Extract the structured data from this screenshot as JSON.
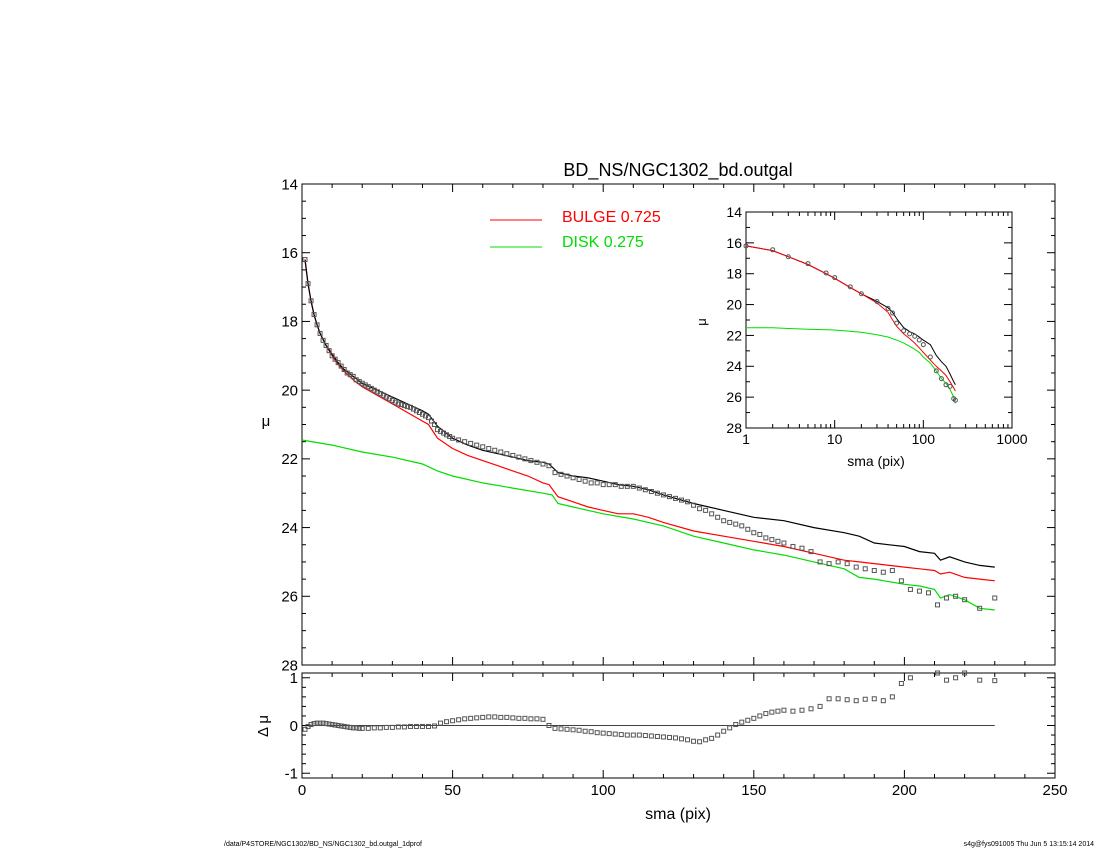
{
  "chart_data": [
    {
      "type": "line",
      "title": "BD_NS/NGC1302_bd.outgal",
      "xlabel": "",
      "ylabel": "μ",
      "xlim": [
        0,
        250
      ],
      "ylim": [
        28,
        14
      ],
      "yticks": [
        "14",
        "16",
        "18",
        "20",
        "22",
        "24",
        "26",
        "28"
      ],
      "legend_placement": "top-center",
      "legend": [
        {
          "label": "BULGE  0.725",
          "color": "#ff0000"
        },
        {
          "label": "DISK  0.275",
          "color": "#00dd00"
        }
      ],
      "series": [
        {
          "name": "BULGE  0.725",
          "color": "#ff0000",
          "x": [
            1,
            2,
            3,
            4,
            5,
            6,
            8,
            10,
            12,
            14,
            17,
            20,
            25,
            30,
            35,
            40,
            42,
            45,
            50,
            55,
            60,
            65,
            70,
            75,
            80,
            82,
            85,
            90,
            95,
            100,
            105,
            110,
            115,
            120,
            130,
            140,
            150,
            160,
            170,
            180,
            185,
            190,
            195,
            200,
            205,
            210,
            212,
            215,
            220,
            225,
            230
          ],
          "y": [
            16.2,
            16.9,
            17.4,
            17.8,
            18.1,
            18.35,
            18.7,
            19.0,
            19.25,
            19.45,
            19.7,
            19.9,
            20.15,
            20.4,
            20.65,
            20.9,
            21.0,
            21.4,
            21.7,
            21.9,
            22.05,
            22.2,
            22.35,
            22.5,
            22.7,
            22.75,
            23.1,
            23.25,
            23.4,
            23.5,
            23.6,
            23.6,
            23.7,
            23.85,
            24.1,
            24.25,
            24.4,
            24.55,
            24.75,
            24.95,
            25.0,
            25.05,
            25.1,
            25.15,
            25.2,
            25.25,
            25.35,
            25.3,
            25.45,
            25.5,
            25.55
          ]
        },
        {
          "name": "DISK  0.275",
          "color": "#00dd00",
          "x": [
            0,
            10,
            20,
            30,
            40,
            45,
            50,
            60,
            70,
            80,
            83,
            85,
            90,
            100,
            110,
            120,
            130,
            140,
            150,
            160,
            170,
            180,
            185,
            190,
            200,
            205,
            210,
            212,
            215,
            220,
            225,
            230
          ],
          "y": [
            21.45,
            21.6,
            21.8,
            21.95,
            22.15,
            22.35,
            22.5,
            22.7,
            22.85,
            23.0,
            23.05,
            23.3,
            23.4,
            23.6,
            23.75,
            23.95,
            24.25,
            24.45,
            24.65,
            24.8,
            25.0,
            25.2,
            25.45,
            25.5,
            25.65,
            25.7,
            25.8,
            26.05,
            25.95,
            26.1,
            26.35,
            26.4
          ]
        },
        {
          "name": "",
          "color": "#000000",
          "x": [
            1,
            2,
            3,
            4,
            5,
            6,
            8,
            10,
            12,
            14,
            17,
            20,
            25,
            30,
            35,
            40,
            42,
            45,
            50,
            55,
            60,
            65,
            70,
            75,
            80,
            82,
            85,
            90,
            95,
            100,
            105,
            110,
            115,
            120,
            130,
            140,
            150,
            160,
            170,
            180,
            185,
            190,
            195,
            200,
            205,
            210,
            212,
            215,
            220,
            225,
            230
          ],
          "y": [
            16.2,
            16.9,
            17.4,
            17.8,
            18.1,
            18.35,
            18.7,
            18.95,
            19.2,
            19.4,
            19.6,
            19.8,
            20.0,
            20.2,
            20.4,
            20.6,
            20.7,
            21.05,
            21.4,
            21.6,
            21.75,
            21.85,
            21.95,
            22.05,
            22.1,
            22.15,
            22.4,
            22.5,
            22.55,
            22.65,
            22.75,
            22.8,
            22.9,
            23.05,
            23.3,
            23.5,
            23.7,
            23.8,
            24.0,
            24.15,
            24.25,
            24.45,
            24.5,
            24.55,
            24.7,
            24.75,
            24.95,
            24.85,
            25.0,
            25.1,
            25.15
          ]
        },
        {
          "name": "",
          "color": "#555555",
          "marker": "square",
          "x": [
            1,
            2,
            3,
            4,
            5,
            6,
            7,
            8,
            9,
            10,
            11,
            12,
            13,
            14,
            15,
            16,
            17,
            18,
            19,
            20,
            21,
            22,
            23,
            24,
            25,
            26,
            27,
            28,
            29,
            30,
            31,
            32,
            33,
            34,
            35,
            36,
            37,
            38,
            39,
            40,
            41,
            42,
            43,
            44,
            45,
            46,
            47,
            48,
            49,
            50,
            52,
            54,
            56,
            58,
            60,
            62,
            64,
            66,
            68,
            70,
            72,
            74,
            76,
            78,
            80,
            82,
            84,
            86,
            88,
            90,
            92,
            94,
            96,
            98,
            100,
            102,
            104,
            106,
            108,
            110,
            112,
            114,
            116,
            118,
            120,
            122,
            124,
            126,
            128,
            130,
            132,
            134,
            136,
            138,
            140,
            142,
            144,
            146,
            148,
            150,
            152,
            154,
            156,
            158,
            160,
            163,
            166,
            169,
            172,
            175,
            178,
            181,
            184,
            187,
            190,
            193,
            196,
            199,
            202,
            205,
            208,
            211,
            214,
            217,
            220,
            225,
            230
          ],
          "y": [
            16.2,
            16.9,
            17.4,
            17.8,
            18.1,
            18.35,
            18.55,
            18.7,
            18.85,
            19.0,
            19.1,
            19.2,
            19.3,
            19.4,
            19.5,
            19.55,
            19.6,
            19.7,
            19.75,
            19.8,
            19.85,
            19.9,
            19.95,
            20.0,
            20.05,
            20.1,
            20.15,
            20.2,
            20.25,
            20.3,
            20.35,
            20.4,
            20.42,
            20.45,
            20.48,
            20.5,
            20.55,
            20.6,
            20.65,
            20.7,
            20.75,
            20.8,
            20.9,
            21.0,
            21.15,
            21.2,
            21.25,
            21.3,
            21.35,
            21.4,
            21.45,
            21.5,
            21.55,
            21.6,
            21.65,
            21.7,
            21.75,
            21.8,
            21.85,
            21.9,
            21.95,
            22.0,
            22.05,
            22.1,
            22.15,
            22.2,
            22.4,
            22.45,
            22.5,
            22.55,
            22.6,
            22.65,
            22.7,
            22.7,
            22.75,
            22.75,
            22.75,
            22.8,
            22.8,
            22.8,
            22.85,
            22.9,
            22.95,
            23.0,
            23.05,
            23.1,
            23.15,
            23.2,
            23.25,
            23.35,
            23.45,
            23.5,
            23.6,
            23.7,
            23.8,
            23.85,
            23.9,
            23.95,
            24.05,
            24.15,
            24.2,
            24.3,
            24.35,
            24.4,
            24.45,
            24.55,
            24.6,
            24.7,
            25.0,
            25.05,
            25.0,
            25.05,
            25.15,
            25.2,
            25.25,
            25.3,
            25.25,
            25.55,
            25.8,
            25.85,
            25.9,
            26.25,
            26.05,
            26.0,
            26.1,
            26.35,
            26.05
          ]
        }
      ]
    },
    {
      "type": "line",
      "title": "",
      "xlabel": "sma (pix)",
      "ylabel": "μ",
      "xscale": "log",
      "xlim": [
        1,
        1000
      ],
      "ylim": [
        28,
        14
      ],
      "xticks": [
        "1",
        "10",
        "100",
        "1000"
      ],
      "yticks": [
        "14",
        "16",
        "18",
        "20",
        "22",
        "24",
        "26",
        "28"
      ],
      "series": [
        {
          "name": "",
          "color": "#000000",
          "x": [
            1,
            2,
            3,
            5,
            8,
            10,
            15,
            20,
            30,
            40,
            45,
            50,
            60,
            70,
            80,
            90,
            100,
            120,
            140,
            160,
            180,
            200,
            220,
            230
          ],
          "y": [
            16.2,
            16.5,
            16.9,
            17.4,
            18.0,
            18.3,
            18.9,
            19.3,
            19.8,
            20.2,
            20.5,
            20.9,
            21.5,
            21.75,
            21.9,
            22.1,
            22.3,
            22.6,
            23.3,
            23.7,
            24.0,
            24.5,
            25.0,
            25.2
          ]
        },
        {
          "name": "",
          "color": "#ff0000",
          "x": [
            1,
            2,
            3,
            5,
            8,
            10,
            15,
            20,
            30,
            40,
            45,
            50,
            60,
            70,
            80,
            90,
            100,
            120,
            140,
            160,
            180,
            200,
            220,
            230
          ],
          "y": [
            16.2,
            16.5,
            16.9,
            17.4,
            18.0,
            18.3,
            18.9,
            19.3,
            19.9,
            20.5,
            21.0,
            21.4,
            21.9,
            22.2,
            22.5,
            22.8,
            23.1,
            23.6,
            24.0,
            24.3,
            24.6,
            25.0,
            25.4,
            25.6
          ]
        },
        {
          "name": "",
          "color": "#00dd00",
          "x": [
            1,
            2,
            3,
            5,
            10,
            20,
            30,
            40,
            50,
            60,
            70,
            80,
            90,
            100,
            120,
            140,
            160,
            180,
            200,
            220,
            230
          ],
          "y": [
            21.5,
            21.5,
            21.55,
            21.6,
            21.65,
            21.8,
            21.95,
            22.1,
            22.3,
            22.5,
            22.7,
            22.9,
            23.1,
            23.4,
            23.8,
            24.3,
            24.8,
            25.1,
            25.5,
            26.0,
            26.4
          ]
        },
        {
          "name": "",
          "color": "#555555",
          "marker": "circle",
          "x": [
            1,
            2,
            3,
            5,
            8,
            10,
            15,
            20,
            30,
            40,
            45,
            50,
            60,
            70,
            80,
            90,
            100,
            120,
            140,
            160,
            180,
            200,
            220,
            230
          ],
          "y": [
            16.2,
            16.45,
            16.9,
            17.35,
            17.95,
            18.25,
            18.85,
            19.3,
            19.8,
            20.25,
            20.55,
            21.2,
            21.7,
            21.9,
            22.05,
            22.3,
            22.6,
            23.4,
            24.3,
            24.8,
            25.2,
            25.3,
            26.1,
            26.2
          ]
        }
      ]
    },
    {
      "type": "scatter",
      "title": "",
      "xlabel": "sma (pix)",
      "ylabel": "Δ μ",
      "xlim": [
        0,
        250
      ],
      "ylim": [
        -1.1,
        1.1
      ],
      "xticks": [
        "0",
        "50",
        "100",
        "150",
        "200",
        "250"
      ],
      "yticks": [
        "-1",
        "0",
        "1"
      ],
      "zero_line": {
        "x_start": 0,
        "x_end": 230,
        "y": 0
      },
      "series": [
        {
          "name": "",
          "color": "#555555",
          "marker": "square",
          "x": [
            1,
            2,
            3,
            4,
            5,
            6,
            7,
            8,
            9,
            10,
            11,
            12,
            13,
            14,
            15,
            16,
            17,
            18,
            19,
            20,
            22,
            24,
            26,
            28,
            30,
            32,
            34,
            36,
            38,
            40,
            42,
            44,
            46,
            48,
            50,
            52,
            54,
            56,
            58,
            60,
            62,
            64,
            66,
            68,
            70,
            72,
            74,
            76,
            78,
            80,
            82,
            84,
            86,
            88,
            90,
            92,
            94,
            96,
            98,
            100,
            102,
            104,
            106,
            108,
            110,
            112,
            114,
            116,
            118,
            120,
            122,
            124,
            126,
            128,
            130,
            132,
            134,
            136,
            138,
            140,
            142,
            144,
            146,
            148,
            150,
            152,
            154,
            156,
            158,
            160,
            163,
            166,
            169,
            172,
            175,
            178,
            181,
            184,
            187,
            190,
            193,
            196,
            199,
            202,
            205,
            208,
            211,
            214,
            217,
            220,
            225,
            230
          ],
          "y": [
            -0.08,
            -0.02,
            0.02,
            0.04,
            0.05,
            0.05,
            0.05,
            0.04,
            0.03,
            0.02,
            0.01,
            0.0,
            -0.01,
            -0.02,
            -0.03,
            -0.04,
            -0.05,
            -0.05,
            -0.06,
            -0.06,
            -0.06,
            -0.05,
            -0.05,
            -0.04,
            -0.04,
            -0.03,
            -0.03,
            -0.02,
            -0.02,
            -0.02,
            -0.02,
            -0.01,
            0.05,
            0.08,
            0.1,
            0.12,
            0.14,
            0.15,
            0.16,
            0.17,
            0.18,
            0.18,
            0.17,
            0.17,
            0.16,
            0.15,
            0.15,
            0.14,
            0.14,
            0.13,
            0.0,
            -0.06,
            -0.07,
            -0.08,
            -0.09,
            -0.1,
            -0.12,
            -0.13,
            -0.15,
            -0.16,
            -0.17,
            -0.18,
            -0.19,
            -0.2,
            -0.2,
            -0.2,
            -0.21,
            -0.22,
            -0.23,
            -0.24,
            -0.25,
            -0.26,
            -0.28,
            -0.3,
            -0.33,
            -0.34,
            -0.3,
            -0.27,
            -0.2,
            -0.12,
            -0.05,
            0.02,
            0.07,
            0.11,
            0.15,
            0.2,
            0.25,
            0.28,
            0.3,
            0.32,
            0.3,
            0.32,
            0.35,
            0.4,
            0.56,
            0.56,
            0.54,
            0.52,
            0.55,
            0.56,
            0.52,
            0.6,
            0.88,
            1.0,
            1.2,
            1.25,
            1.1,
            0.95,
            1.0,
            1.1,
            0.95,
            0.94
          ]
        }
      ]
    }
  ],
  "footer": {
    "left": "/data/P4STORE/NGC1302/BD_NS/NGC1302_bd.outgal_1dprof",
    "right": "s4g@fys091005  Thu Jun  5 13:15:14 2014"
  }
}
